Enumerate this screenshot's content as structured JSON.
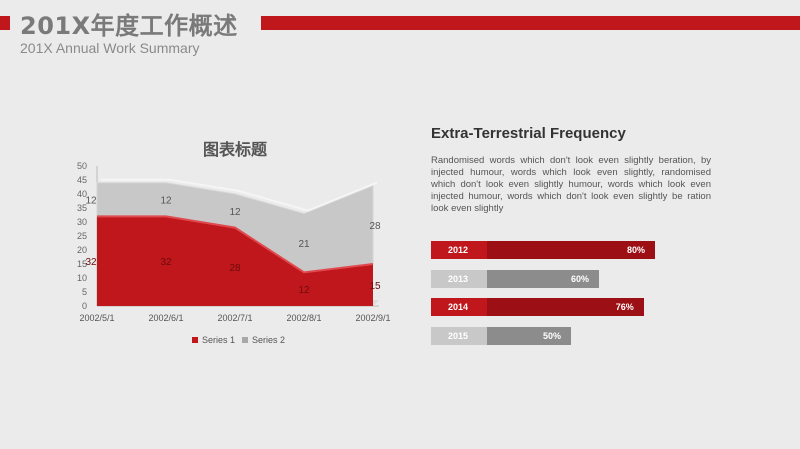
{
  "header": {
    "title": "201X年度工作概述",
    "subtitle": "201X Annual Work Summary"
  },
  "colors": {
    "accent": "#c0171c",
    "accent_dark": "#9c1015",
    "gray": "#a8a8a8",
    "gray_dark": "#8c8c8c",
    "gray_light": "#c8c8c8"
  },
  "chart_data": {
    "type": "area",
    "title": "图表标题",
    "x": [
      "2002/5/1",
      "2002/6/1",
      "2002/7/1",
      "2002/8/1",
      "2002/9/1"
    ],
    "series": [
      {
        "name": "Series 1",
        "values": [
          32,
          32,
          28,
          12,
          15
        ],
        "color": "#c0171c"
      },
      {
        "name": "Series 2",
        "values": [
          12,
          12,
          12,
          21,
          28
        ],
        "color": "#c8c8c8"
      }
    ],
    "stacked": true,
    "ylim": [
      0,
      50
    ],
    "yticks": [
      0,
      5,
      10,
      15,
      20,
      25,
      30,
      35,
      40,
      45,
      50
    ],
    "legend": "bottom"
  },
  "right": {
    "title": "Extra-Terrestrial Frequency",
    "body": "Randomised words which don't look even slightly beration, by injected humour, words which look even slightly, randomised which don't look even slightly humour, words which look even injected humour, words which don't look even slightly be ration look even slightly",
    "bars": [
      {
        "year": "2012",
        "percent": 80,
        "label": "80%",
        "style": "red"
      },
      {
        "year": "2013",
        "percent": 60,
        "label": "60%",
        "style": "gray"
      },
      {
        "year": "2014",
        "percent": 76,
        "label": "76%",
        "style": "red"
      },
      {
        "year": "2015",
        "percent": 50,
        "label": "50%",
        "style": "gray"
      }
    ]
  }
}
